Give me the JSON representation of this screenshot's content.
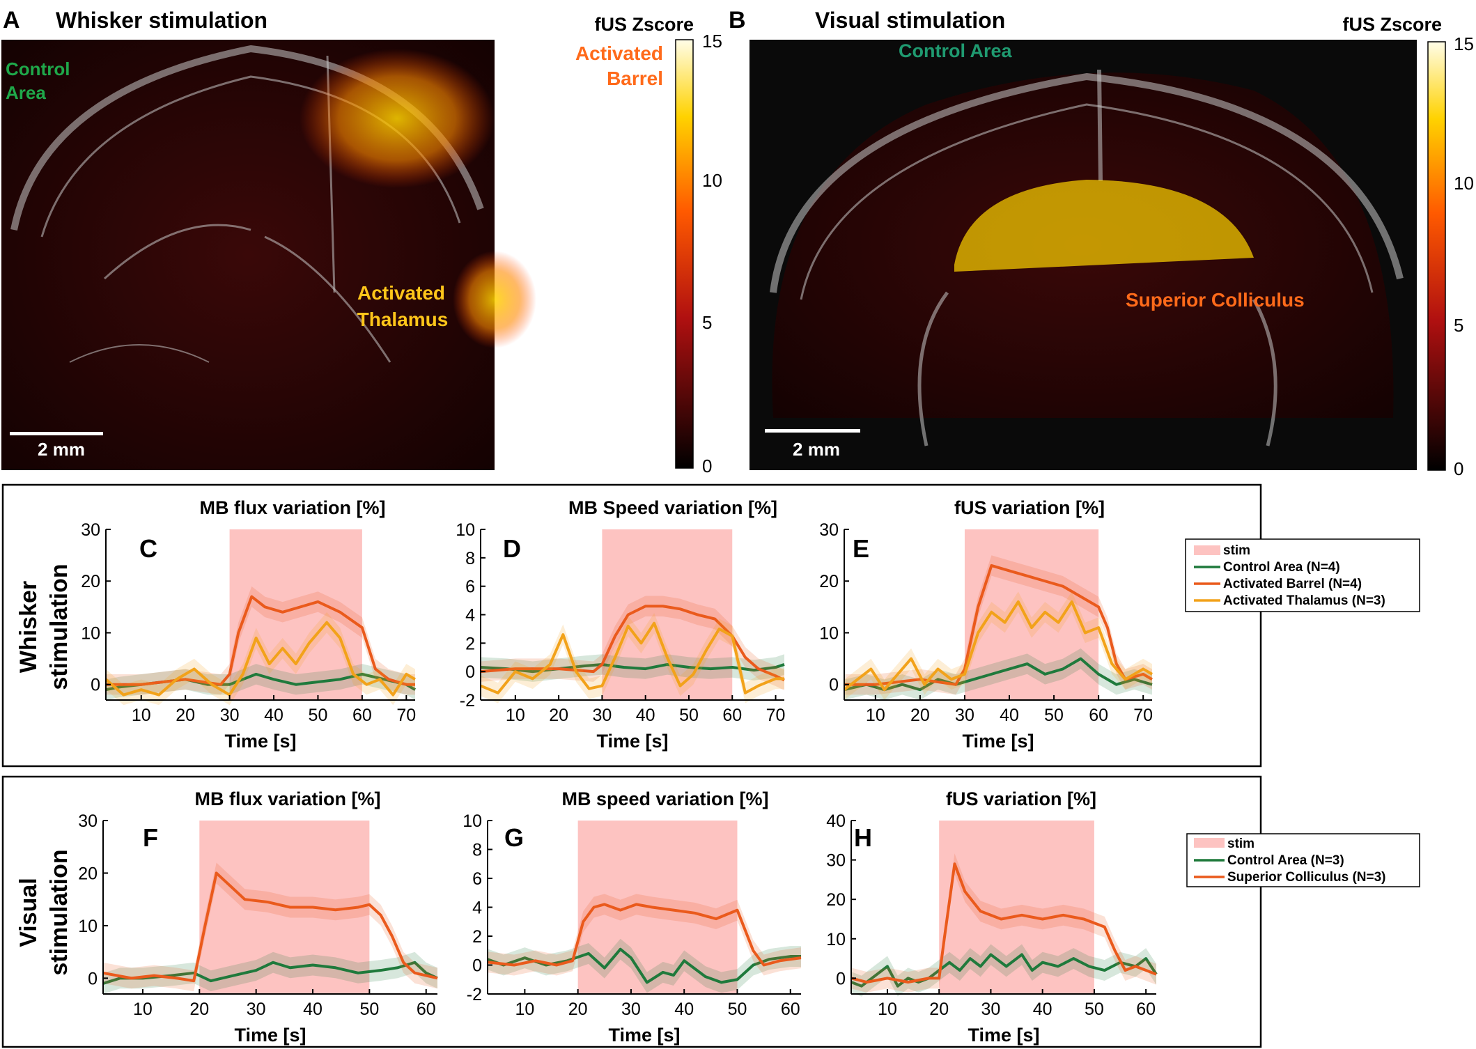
{
  "panelA": {
    "letter": "A",
    "title": "Whisker stimulation",
    "cbar_label": "fUS Zscore",
    "cbar_ticks": [
      "15",
      "10",
      "5",
      "0"
    ],
    "scale_bar": "2 mm",
    "lbl_control_1": "Control",
    "lbl_control_2": "Area",
    "lbl_barrel_1": "Activated",
    "lbl_barrel_2": "Barrel",
    "lbl_thal_1": "Activated",
    "lbl_thal_2": "Thalamus"
  },
  "panelB": {
    "letter": "B",
    "title": "Visual stimulation",
    "cbar_label": "fUS Zscore",
    "cbar_ticks": [
      "15",
      "10",
      "5",
      "0"
    ],
    "scale_bar": "2 mm",
    "lbl_control": "Control Area",
    "lbl_sc": "Superior Colliculus"
  },
  "rows": {
    "whisker_1": "Whisker",
    "whisker_2": "stimulation",
    "visual_1": "Visual",
    "visual_2": "stimulation"
  },
  "legend_whisker": [
    "stim",
    "Control Area (N=4)",
    "Activated Barrel (N=4)",
    "Activated Thalamus (N=3)"
  ],
  "legend_visual": [
    "stim",
    "Control Area (N=3)",
    "Superior Colliculus (N=3)"
  ],
  "colors": {
    "green": "#1f7a3c",
    "orange": "#ea5a1c",
    "yellow": "#f2a21a",
    "stim": "#fdc3c1"
  },
  "chart_data": [
    {
      "id": "C",
      "type": "line",
      "title": "MB flux variation [%]",
      "xlabel": "Time [s]",
      "xlim": [
        2,
        72
      ],
      "ylim": [
        -3,
        30
      ],
      "xticks": [
        10,
        20,
        30,
        40,
        50,
        60,
        70
      ],
      "yticks": [
        0,
        10,
        20,
        30
      ],
      "stim": [
        30,
        60
      ],
      "series": [
        {
          "name": "Control Area (N=4)",
          "color": "green",
          "x": [
            2,
            5,
            10,
            15,
            20,
            25,
            30,
            33,
            36,
            40,
            45,
            50,
            55,
            60,
            65,
            70,
            72
          ],
          "y": [
            -1,
            -0.5,
            0,
            0.5,
            1,
            0,
            0,
            1,
            2,
            1,
            0,
            0.5,
            1,
            2,
            1,
            0,
            -1
          ]
        },
        {
          "name": "Activated Barrel (N=4)",
          "color": "orange",
          "x": [
            2,
            10,
            20,
            28,
            30,
            32,
            35,
            38,
            42,
            46,
            50,
            55,
            60,
            63,
            66,
            70,
            72
          ],
          "y": [
            0,
            0,
            1,
            0,
            2,
            10,
            17,
            15,
            14,
            15,
            16,
            14,
            11,
            3,
            1,
            0,
            0
          ]
        },
        {
          "name": "Activated Thalamus (N=3)",
          "color": "yellow",
          "x": [
            2,
            6,
            10,
            14,
            18,
            22,
            26,
            30,
            33,
            36,
            39,
            42,
            45,
            48,
            52,
            55,
            58,
            61,
            64,
            67,
            70,
            72
          ],
          "y": [
            1,
            -2,
            -1,
            -2,
            1,
            3,
            0,
            -2,
            2,
            9,
            4,
            7,
            4,
            8,
            12,
            9,
            2,
            0,
            1,
            -2,
            2,
            1
          ]
        }
      ]
    },
    {
      "id": "D",
      "type": "line",
      "title": "MB Speed variation [%]",
      "xlabel": "Time [s]",
      "xlim": [
        2,
        72
      ],
      "ylim": [
        -2,
        10
      ],
      "xticks": [
        10,
        20,
        30,
        40,
        50,
        60,
        70
      ],
      "yticks": [
        -2,
        0,
        2,
        4,
        6,
        8,
        10
      ],
      "stim": [
        30,
        60
      ],
      "series": [
        {
          "name": "Control Area (N=4)",
          "color": "green",
          "x": [
            2,
            8,
            14,
            20,
            26,
            30,
            35,
            40,
            45,
            50,
            55,
            60,
            65,
            70,
            72
          ],
          "y": [
            0.3,
            0.2,
            0,
            0.2,
            0.4,
            0.5,
            0.3,
            0.2,
            0.5,
            0.3,
            0.2,
            0.3,
            0.1,
            0.3,
            0.5
          ]
        },
        {
          "name": "Activated Barrel (N=4)",
          "color": "orange",
          "x": [
            2,
            10,
            20,
            28,
            30,
            33,
            36,
            40,
            44,
            48,
            52,
            56,
            60,
            63,
            66,
            70,
            72
          ],
          "y": [
            0,
            0.2,
            0.2,
            0,
            0.5,
            2.5,
            4,
            4.6,
            4.6,
            4.4,
            4,
            3.7,
            2.5,
            1,
            0.2,
            -0.3,
            -0.6
          ]
        },
        {
          "name": "Activated Thalamus (N=3)",
          "color": "yellow",
          "x": [
            2,
            6,
            10,
            14,
            18,
            21,
            24,
            27,
            30,
            33,
            36,
            39,
            42,
            45,
            48,
            51,
            54,
            57,
            60,
            63,
            66,
            70,
            72
          ],
          "y": [
            -1,
            -1.5,
            0,
            -0.5,
            0.5,
            2.6,
            0,
            -1.2,
            -1,
            1,
            3.2,
            2,
            3.4,
            1,
            -1,
            -0.2,
            1.5,
            3,
            2.5,
            -1.5,
            -1,
            -0.5,
            -0.5
          ]
        }
      ]
    },
    {
      "id": "E",
      "type": "line",
      "title": "fUS variation [%]",
      "xlabel": "Time [s]",
      "xlim": [
        3,
        72
      ],
      "ylim": [
        -3,
        30
      ],
      "xticks": [
        10,
        20,
        30,
        40,
        50,
        60,
        70
      ],
      "yticks": [
        0,
        10,
        20,
        30
      ],
      "stim": [
        30,
        60
      ],
      "series": [
        {
          "name": "Control Area (N=4)",
          "color": "green",
          "x": [
            3,
            8,
            12,
            16,
            20,
            24,
            28,
            32,
            36,
            40,
            44,
            48,
            52,
            56,
            60,
            64,
            68,
            72
          ],
          "y": [
            -1,
            0,
            -1,
            0,
            -1,
            1,
            0,
            1,
            2,
            3,
            4,
            2,
            3,
            5,
            2,
            0,
            1,
            0
          ]
        },
        {
          "name": "Activated Barrel (N=4)",
          "color": "orange",
          "x": [
            3,
            10,
            20,
            28,
            30,
            33,
            36,
            40,
            44,
            48,
            52,
            56,
            60,
            62,
            64,
            66,
            70,
            72
          ],
          "y": [
            0,
            0,
            1,
            0,
            3,
            15,
            23,
            22,
            21,
            20,
            19,
            17,
            15,
            11,
            4,
            1,
            2,
            1
          ]
        },
        {
          "name": "Activated Thalamus (N=3)",
          "color": "yellow",
          "x": [
            3,
            6,
            9,
            12,
            15,
            18,
            21,
            24,
            27,
            30,
            33,
            36,
            39,
            42,
            45,
            48,
            51,
            54,
            57,
            60,
            63,
            66,
            70,
            72
          ],
          "y": [
            -1,
            1,
            3,
            -1,
            2,
            5,
            0,
            3,
            1,
            2,
            10,
            14,
            12,
            16,
            11,
            14,
            12,
            16,
            10,
            11,
            4,
            1,
            3,
            2
          ]
        }
      ]
    },
    {
      "id": "F",
      "type": "line",
      "title": "MB flux variation [%]",
      "xlabel": "Time [s]",
      "xlim": [
        3,
        62
      ],
      "ylim": [
        -3,
        30
      ],
      "xticks": [
        10,
        20,
        30,
        40,
        50,
        60
      ],
      "yticks": [
        0,
        10,
        20,
        30
      ],
      "stim": [
        20,
        50
      ],
      "series": [
        {
          "name": "Control Area (N=3)",
          "color": "green",
          "x": [
            3,
            6,
            10,
            15,
            19,
            22,
            26,
            30,
            33,
            36,
            40,
            44,
            48,
            52,
            55,
            58,
            60,
            62
          ],
          "y": [
            -1,
            0,
            0,
            0.5,
            1,
            -0.5,
            0.5,
            1.5,
            3,
            2,
            2.5,
            2,
            1,
            1.5,
            2,
            3,
            1,
            0
          ]
        },
        {
          "name": "Superior Colliculus (N=3)",
          "color": "orange",
          "x": [
            3,
            8,
            12,
            16,
            19,
            21,
            23,
            25,
            28,
            32,
            36,
            40,
            44,
            48,
            50,
            52,
            54,
            56,
            58,
            62
          ],
          "y": [
            1,
            0,
            0.5,
            0,
            -0.5,
            10,
            20,
            18,
            15,
            14.5,
            13.5,
            13.5,
            13,
            13.5,
            14,
            12,
            8,
            3,
            1,
            0
          ]
        }
      ]
    },
    {
      "id": "G",
      "type": "line",
      "title": "MB speed variation [%]",
      "xlabel": "Time [s]",
      "xlim": [
        3,
        62
      ],
      "ylim": [
        -2,
        10
      ],
      "xticks": [
        10,
        20,
        30,
        40,
        50,
        60
      ],
      "yticks": [
        -2,
        0,
        2,
        4,
        6,
        8,
        10
      ],
      "stim": [
        20,
        50
      ],
      "series": [
        {
          "name": "Control Area (N=3)",
          "color": "green",
          "x": [
            3,
            6,
            10,
            14,
            18,
            22,
            25,
            28,
            30,
            33,
            36,
            38,
            40,
            44,
            47,
            50,
            53,
            56,
            60,
            62
          ],
          "y": [
            0.4,
            0,
            0.5,
            0,
            0.3,
            0.8,
            -0.2,
            1.1,
            0.5,
            -1.2,
            -0.5,
            -0.7,
            0.3,
            -0.8,
            -1.2,
            -1,
            0,
            0.4,
            0.6,
            0.6
          ]
        },
        {
          "name": "Superior Colliculus (N=3)",
          "color": "orange",
          "x": [
            3,
            8,
            12,
            16,
            19,
            21,
            23,
            25,
            28,
            31,
            34,
            38,
            42,
            46,
            50,
            53,
            55,
            58,
            62
          ],
          "y": [
            0.2,
            0,
            0.3,
            0,
            0.3,
            3,
            4,
            4.2,
            3.8,
            4.2,
            4,
            3.8,
            3.6,
            3.2,
            3.8,
            1,
            0,
            0.3,
            0.5
          ]
        }
      ]
    },
    {
      "id": "H",
      "type": "line",
      "title": "fUS variation [%]",
      "xlabel": "Time [s]",
      "xlim": [
        3,
        62
      ],
      "ylim": [
        -4,
        40
      ],
      "xticks": [
        10,
        20,
        30,
        40,
        50,
        60
      ],
      "yticks": [
        0,
        10,
        20,
        30,
        40
      ],
      "stim": [
        20,
        50
      ],
      "series": [
        {
          "name": "Control Area (N=3)",
          "color": "green",
          "x": [
            3,
            5,
            8,
            10,
            12,
            14,
            16,
            18,
            20,
            22,
            24,
            26,
            28,
            30,
            33,
            36,
            38,
            40,
            43,
            46,
            49,
            52,
            55,
            58,
            60,
            62
          ],
          "y": [
            -1,
            -2,
            1,
            3,
            -2,
            0,
            -1,
            0,
            2,
            4,
            2,
            5,
            3,
            6,
            3,
            6,
            2,
            4,
            3,
            5,
            3,
            2,
            4,
            3,
            5,
            1
          ]
        },
        {
          "name": "Superior Colliculus (N=3)",
          "color": "orange",
          "x": [
            3,
            6,
            10,
            14,
            18,
            20,
            21,
            23,
            25,
            28,
            32,
            36,
            40,
            44,
            48,
            50,
            52,
            54,
            56,
            58,
            60,
            62
          ],
          "y": [
            0,
            -1,
            0,
            -1,
            0,
            0,
            10,
            29,
            22,
            17,
            15,
            16,
            15,
            16,
            15,
            14,
            13,
            7,
            2,
            3,
            2,
            1
          ]
        }
      ]
    }
  ]
}
